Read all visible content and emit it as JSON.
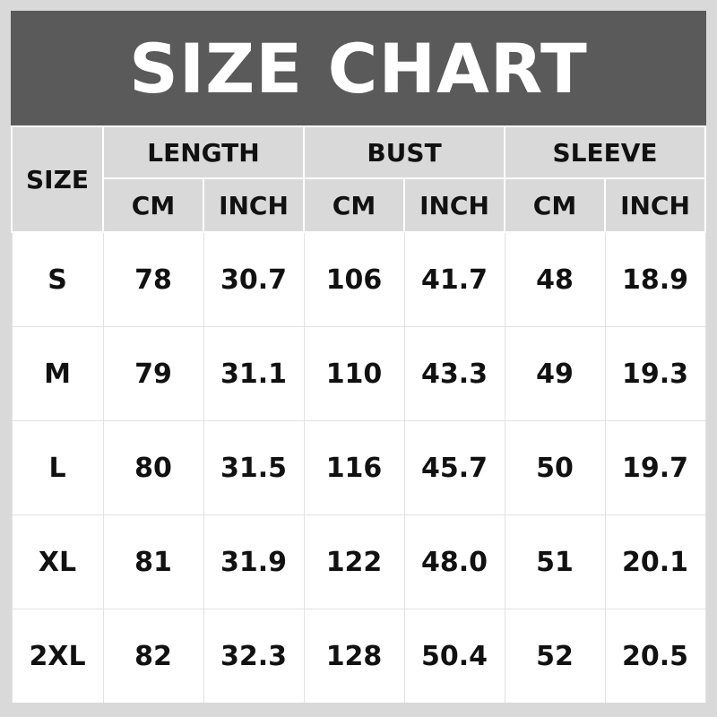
{
  "title": "SIZE CHART",
  "headers": {
    "size": "SIZE",
    "groups": [
      "LENGTH",
      "BUST",
      "SLEEVE"
    ],
    "units": [
      "CM",
      "INCH",
      "CM",
      "INCH",
      "CM",
      "INCH"
    ]
  },
  "rows": [
    [
      "S",
      "78",
      "30.7",
      "106",
      "41.7",
      "48",
      "18.9"
    ],
    [
      "M",
      "79",
      "31.1",
      "110",
      "43.3",
      "49",
      "19.3"
    ],
    [
      "L",
      "80",
      "31.5",
      "116",
      "45.7",
      "50",
      "19.7"
    ],
    [
      "XL",
      "81",
      "31.9",
      "122",
      "48.0",
      "51",
      "20.1"
    ],
    [
      "2XL",
      "82",
      "32.3",
      "128",
      "50.4",
      "52",
      "20.5"
    ]
  ],
  "colors": {
    "title_bg": "#5a5a5a",
    "header_bg": "#d9d9d9",
    "body_bg": "#ffffff"
  }
}
